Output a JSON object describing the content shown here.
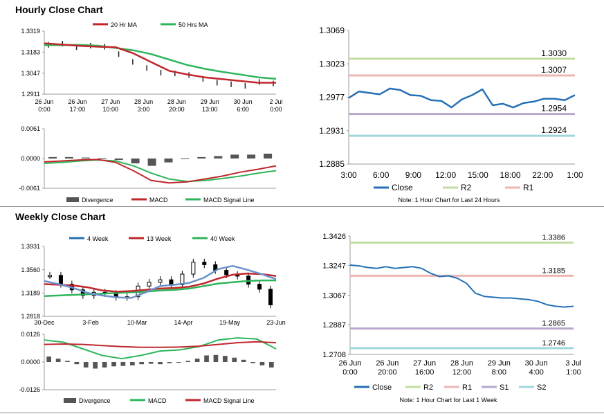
{
  "sections": {
    "hourly_title": "Hourly Close Chart",
    "weekly_title": "Weekly Close Chart"
  },
  "colors": {
    "ma_fast": "#c0262c",
    "ma_slow": "#2db55a",
    "blue": "#2570b5",
    "r2": "#c3dca4",
    "r1": "#efb5b5",
    "s1": "#b7a8cc",
    "s2": "#9fd6dc",
    "bars": "#555555",
    "axis": "#999999"
  },
  "chart_data": [
    {
      "id": "hourly_price",
      "type": "line",
      "legend": [
        "20 Hr MA",
        "50 Hrs MA"
      ],
      "ylim": [
        1.2911,
        1.3319
      ],
      "y_ticks": [
        "1.3319",
        "1.3183",
        "1.3047",
        "1.2911"
      ],
      "x_ticks": [
        [
          "26 Jun",
          "0:00"
        ],
        [
          "26 Jun",
          "17:00"
        ],
        [
          "27 Jun",
          "10:00"
        ],
        [
          "28 Jun",
          "3:00"
        ],
        [
          "28 Jun",
          "20:00"
        ],
        [
          "29 Jun",
          "13:00"
        ],
        [
          "30 Jun",
          "6:00"
        ],
        [
          "2 Jul",
          "0:00"
        ]
      ],
      "series": [
        {
          "name": "20 Hr MA",
          "values": [
            1.324,
            1.3232,
            1.3224,
            1.3218,
            1.3215,
            1.3175,
            1.3118,
            1.3062,
            1.3039,
            1.302,
            1.3008,
            1.2996,
            1.2985,
            1.2985
          ]
        },
        {
          "name": "50 Hrs MA",
          "values": [
            1.3228,
            1.3229,
            1.323,
            1.3225,
            1.321,
            1.3195,
            1.317,
            1.3135,
            1.31,
            1.3075,
            1.3055,
            1.3038,
            1.302,
            1.301
          ]
        },
        {
          "name": "Close",
          "values": [
            1.323,
            1.3238,
            1.3215,
            1.3225,
            1.3218,
            1.317,
            1.312,
            1.308,
            1.305,
            1.3045,
            1.3035,
            1.301,
            1.2985,
            1.2975,
            1.2965,
            1.299,
            1.298
          ]
        }
      ]
    },
    {
      "id": "hourly_macd",
      "type": "line",
      "legend": [
        "Divergence",
        "MACD",
        "MACD Signal Line"
      ],
      "ylim": [
        -0.0061,
        0.0061
      ],
      "y_ticks": [
        "0.0061",
        "0.0000",
        "-0.0061"
      ],
      "series": [
        {
          "name": "MACD",
          "values": [
            -0.0007,
            -0.0005,
            -0.0003,
            -0.0002,
            -0.0008,
            -0.0025,
            -0.0045,
            -0.005,
            -0.0048,
            -0.0042,
            -0.0036,
            -0.0028,
            -0.0022,
            -0.0015
          ]
        },
        {
          "name": "MACD Signal Line",
          "values": [
            -0.001,
            -0.0008,
            -0.0005,
            -0.0003,
            -0.0005,
            -0.0015,
            -0.003,
            -0.0042,
            -0.0047,
            -0.0045,
            -0.0041,
            -0.0036,
            -0.003,
            -0.0025
          ]
        },
        {
          "name": "Divergence",
          "values": [
            0.0003,
            0.0003,
            0.0002,
            0.0001,
            -0.0003,
            -0.001,
            -0.0015,
            -0.0008,
            -0.0001,
            0.0003,
            0.0005,
            0.0008,
            0.0008,
            0.001
          ]
        }
      ]
    },
    {
      "id": "hourly_pivot",
      "type": "line",
      "ylim": [
        1.2885,
        1.3069
      ],
      "y_ticks": [
        "1.3069",
        "1.3023",
        "1.2977",
        "1.2931",
        "1.2885"
      ],
      "x_ticks": [
        "3:00",
        "6:00",
        "9:00",
        "12:00",
        "15:00",
        "18:00",
        "22:00",
        "1:00"
      ],
      "series": [
        {
          "name": "Close",
          "values": [
            1.2976,
            1.2985,
            1.2983,
            1.2981,
            1.2989,
            1.2987,
            1.298,
            1.2979,
            1.2973,
            1.2972,
            1.2963,
            1.2974,
            1.298,
            1.2988,
            1.2966,
            1.2968,
            1.2963,
            1.2969,
            1.2971,
            1.2975,
            1.2975,
            1.2973,
            1.298
          ]
        }
      ],
      "levels": [
        {
          "name": "R2",
          "value": 1.303,
          "label": "1.3030"
        },
        {
          "name": "R1",
          "value": 1.3007,
          "label": "1.3007"
        },
        {
          "name": "S1",
          "value": 1.2954,
          "label": "1.2954"
        },
        {
          "name": "S2",
          "value": 1.2924,
          "label": "1.2924"
        }
      ],
      "legend": [
        "Close",
        "R2",
        "R1"
      ],
      "note": "Note: 1 Hour Chart for Last 24 Hours"
    },
    {
      "id": "weekly_price",
      "type": "line",
      "legend": [
        "4 Week",
        "13 Week",
        "40 Week"
      ],
      "ylim": [
        1.2818,
        1.3931
      ],
      "y_ticks": [
        "1.3931",
        "1.3560",
        "1.3189",
        "1.2818"
      ],
      "x_ticks": [
        "30-Dec",
        "3-Feb",
        "10-Mar",
        "14-Apr",
        "19-May",
        "23-Jun"
      ],
      "series": [
        {
          "name": "4 Week",
          "values": [
            1.338,
            1.333,
            1.327,
            1.319,
            1.315,
            1.312,
            1.311,
            1.32,
            1.33,
            1.332,
            1.335,
            1.343,
            1.357,
            1.362,
            1.356,
            1.349,
            1.341
          ]
        },
        {
          "name": "13 Week",
          "values": [
            1.333,
            1.332,
            1.331,
            1.328,
            1.323,
            1.321,
            1.322,
            1.324,
            1.326,
            1.327,
            1.329,
            1.334,
            1.342,
            1.348,
            1.35,
            1.349,
            1.346
          ]
        },
        {
          "name": "40 Week",
          "values": [
            1.314,
            1.315,
            1.316,
            1.317,
            1.318,
            1.319,
            1.32,
            1.321,
            1.323,
            1.324,
            1.326,
            1.33,
            1.334,
            1.336,
            1.338,
            1.339,
            1.339
          ]
        },
        {
          "name": "Close",
          "values": [
            1.347,
            1.333,
            1.324,
            1.315,
            1.32,
            1.318,
            1.312,
            1.313,
            1.33,
            1.336,
            1.34,
            1.332,
            1.349,
            1.368,
            1.364,
            1.355,
            1.348,
            1.346,
            1.333,
            1.325,
            1.3
          ]
        }
      ]
    },
    {
      "id": "weekly_macd",
      "type": "line",
      "legend": [
        "Divergence",
        "MACD",
        "MACD Signal Line"
      ],
      "ylim": [
        -0.0126,
        0.0126
      ],
      "y_ticks": [
        "0.0126",
        "0.0000",
        "-0.0126"
      ],
      "series": [
        {
          "name": "MACD",
          "values": [
            0.01,
            0.009,
            0.006,
            0.003,
            0.0015,
            0.003,
            0.005,
            0.0055,
            0.007,
            0.01,
            0.011,
            0.0105,
            0.006
          ]
        },
        {
          "name": "MACD Signal Line",
          "values": [
            0.008,
            0.0082,
            0.008,
            0.0075,
            0.007,
            0.0067,
            0.0067,
            0.0068,
            0.0072,
            0.008,
            0.0088,
            0.0092,
            0.0088
          ]
        },
        {
          "name": "Divergence",
          "values": [
            0.0025,
            0.0015,
            0.0005,
            -0.001,
            -0.0025,
            -0.003,
            -0.0025,
            -0.002,
            -0.0018,
            -0.0015,
            -0.001,
            -0.0008,
            -0.001,
            -0.0005,
            0.0,
            0.0005,
            0.0015,
            0.003,
            0.0032,
            0.0028,
            0.002,
            0.001,
            -0.0005,
            -0.0015,
            -0.0025
          ]
        }
      ]
    },
    {
      "id": "weekly_pivot",
      "type": "line",
      "ylim": [
        1.2708,
        1.3426
      ],
      "y_ticks": [
        "1.3426",
        "1.3247",
        "1.3067",
        "1.2887",
        "1.2708"
      ],
      "x_ticks": [
        [
          "26 Jun",
          "0:00"
        ],
        [
          "26 Jun",
          "20:00"
        ],
        [
          "27 Jun",
          "16:00"
        ],
        [
          "28 Jun",
          "12:00"
        ],
        [
          "29 Jun",
          "8:00"
        ],
        [
          "30 Jun",
          "4:00"
        ],
        [
          "3 Jul",
          "1:00"
        ]
      ],
      "series": [
        {
          "name": "Close",
          "values": [
            1.325,
            1.3245,
            1.3235,
            1.323,
            1.324,
            1.323,
            1.3235,
            1.324,
            1.323,
            1.32,
            1.318,
            1.3185,
            1.317,
            1.314,
            1.308,
            1.306,
            1.3055,
            1.305,
            1.305,
            1.3045,
            1.304,
            1.303,
            1.301,
            1.3,
            1.2995,
            1.3
          ]
        }
      ],
      "levels": [
        {
          "name": "R2",
          "value": 1.3386,
          "label": "1.3386"
        },
        {
          "name": "R1",
          "value": 1.3185,
          "label": "1.3185"
        },
        {
          "name": "S1",
          "value": 1.2865,
          "label": "1.2865"
        },
        {
          "name": "S2",
          "value": 1.2746,
          "label": "1.2746"
        }
      ],
      "legend": [
        "Close",
        "R2",
        "R1",
        "S1",
        "S2"
      ],
      "note": "Note: 1 Hour Chart for Last 1 Week"
    }
  ]
}
